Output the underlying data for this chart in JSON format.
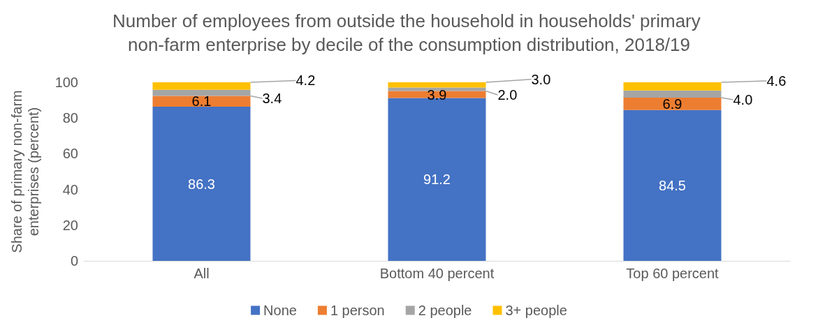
{
  "chart_data": {
    "type": "bar",
    "title": "Number of employees from outside the household in households' primary non-farm enterprise by decile of the consumption distribution, 2018/19",
    "ylabel": "Share of primary non-farm enterprises (percent)",
    "categories": [
      "All",
      "Bottom 40 percent",
      "Top 60 percent"
    ],
    "stacked": true,
    "series": [
      {
        "name": "None",
        "color": "#4472c4",
        "values": [
          86.3,
          91.2,
          84.5
        ],
        "value_labels": [
          "86.3",
          "91.2",
          "84.5"
        ]
      },
      {
        "name": "1 person",
        "color": "#ed7d31",
        "values": [
          6.1,
          3.9,
          6.9
        ],
        "value_labels": [
          "6.1",
          "3.9",
          "6.9"
        ]
      },
      {
        "name": "2 people",
        "color": "#a5a5a5",
        "values": [
          3.4,
          2.0,
          4.0
        ],
        "value_labels": [
          "3.4",
          "2.0",
          "4.0"
        ]
      },
      {
        "name": "3+ people",
        "color": "#ffc000",
        "values": [
          4.2,
          3.0,
          4.6
        ],
        "value_labels": [
          "4.2",
          "3.0",
          "4.6"
        ]
      }
    ],
    "ylim": [
      0,
      100
    ],
    "yticks": [
      0,
      20,
      40,
      60,
      80,
      100
    ],
    "grid": false,
    "legend": "bottom"
  }
}
